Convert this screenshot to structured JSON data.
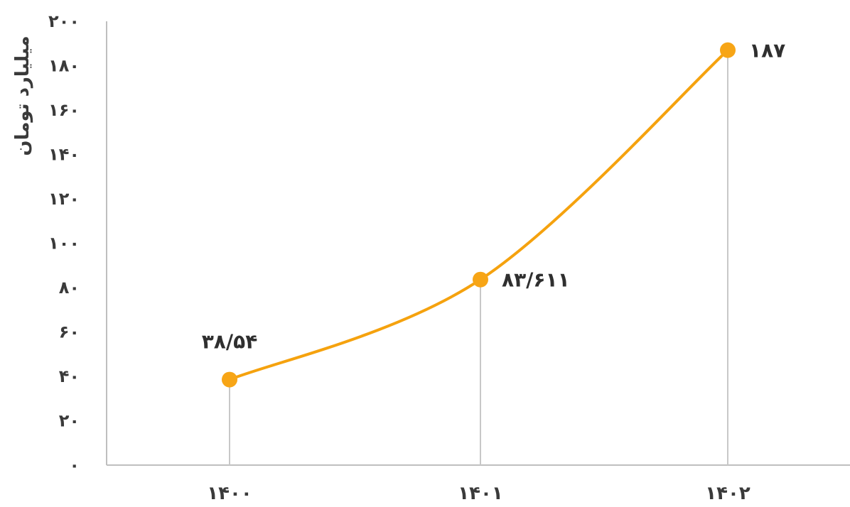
{
  "chart_data": {
    "type": "line",
    "x": [
      "۱۴۰۰",
      "۱۴۰۱",
      "۱۴۰۲"
    ],
    "series": [
      {
        "values": [
          38.54,
          83.611,
          187
        ],
        "labels": [
          "۳۸/۵۴",
          "۸۳/۶۱۱",
          "۱۸۷"
        ]
      }
    ],
    "ylabel": "میلیارد تومان",
    "ylim": [
      0,
      200
    ],
    "yticks": [
      0,
      20,
      40,
      60,
      80,
      100,
      120,
      140,
      160,
      180,
      200
    ],
    "ytick_labels": [
      "۰",
      "۲۰",
      "۴۰",
      "۶۰",
      "۸۰",
      "۱۰۰",
      "۱۲۰",
      "۱۴۰",
      "۱۶۰",
      "۱۸۰",
      "۲۰۰"
    ],
    "grid": false,
    "drop_lines": true,
    "line_color": "#F5A20E",
    "marker_color": "#F7A516"
  }
}
